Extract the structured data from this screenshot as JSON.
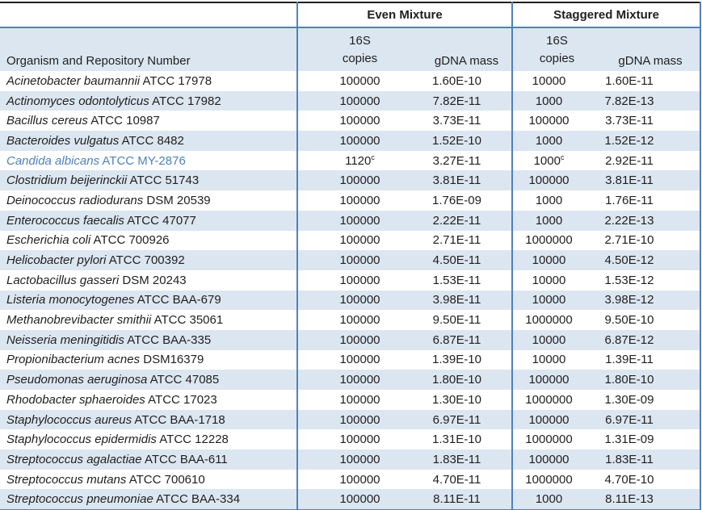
{
  "colors": {
    "stripe_blue": "#dce6f1",
    "line_blue": "#4f81bd",
    "top_border": "#1f1f1f",
    "text": "#1f1f1f",
    "highlight_text": "#4f81bd"
  },
  "table": {
    "group_headers": {
      "even": "Even Mixture",
      "staggered": "Staggered Mixture"
    },
    "subheaders": {
      "organism": "Organism and Repository Number",
      "copies_line1": "16S",
      "copies_line2": "copies",
      "gdna_mass": "gDNA mass"
    },
    "rows": [
      {
        "name": "Acinetobacter baumannii",
        "repo": "ATCC 17978",
        "even_copies": "100000",
        "even_copies_sup": "",
        "even_gdna": "1.60E-10",
        "stag_copies": "10000",
        "stag_copies_sup": "",
        "stag_gdna": "1.60E-11",
        "highlight": false
      },
      {
        "name": "Actinomyces odontolyticus",
        "repo": "ATCC 17982",
        "even_copies": "100000",
        "even_copies_sup": "",
        "even_gdna": "7.82E-11",
        "stag_copies": "1000",
        "stag_copies_sup": "",
        "stag_gdna": "7.82E-13",
        "highlight": false
      },
      {
        "name": "Bacillus cereus",
        "repo": "ATCC 10987",
        "even_copies": "100000",
        "even_copies_sup": "",
        "even_gdna": "3.73E-11",
        "stag_copies": "100000",
        "stag_copies_sup": "",
        "stag_gdna": "3.73E-11",
        "highlight": false
      },
      {
        "name": "Bacteroides vulgatus",
        "repo": "ATCC 8482",
        "even_copies": "100000",
        "even_copies_sup": "",
        "even_gdna": "1.52E-10",
        "stag_copies": "1000",
        "stag_copies_sup": "",
        "stag_gdna": "1.52E-12",
        "highlight": false
      },
      {
        "name": "Candida albicans",
        "repo": "ATCC MY-2876",
        "even_copies": "1120",
        "even_copies_sup": "c",
        "even_gdna": "3.27E-11",
        "stag_copies": "1000",
        "stag_copies_sup": "c",
        "stag_gdna": "2.92E-11",
        "highlight": true
      },
      {
        "name": "Clostridium beijerinckii",
        "repo": "ATCC 51743",
        "even_copies": "100000",
        "even_copies_sup": "",
        "even_gdna": "3.81E-11",
        "stag_copies": "100000",
        "stag_copies_sup": "",
        "stag_gdna": "3.81E-11",
        "highlight": false
      },
      {
        "name": "Deinococcus radiodurans",
        "repo": "DSM 20539",
        "even_copies": "100000",
        "even_copies_sup": "",
        "even_gdna": "1.76E-09",
        "stag_copies": "1000",
        "stag_copies_sup": "",
        "stag_gdna": "1.76E-11",
        "highlight": false
      },
      {
        "name": "Enterococcus faecalis",
        "repo": "ATCC 47077",
        "even_copies": "100000",
        "even_copies_sup": "",
        "even_gdna": "2.22E-11",
        "stag_copies": "1000",
        "stag_copies_sup": "",
        "stag_gdna": "2.22E-13",
        "highlight": false
      },
      {
        "name": "Escherichia coli",
        "repo": "ATCC 700926",
        "even_copies": "100000",
        "even_copies_sup": "",
        "even_gdna": "2.71E-11",
        "stag_copies": "1000000",
        "stag_copies_sup": "",
        "stag_gdna": "2.71E-10",
        "highlight": false
      },
      {
        "name": "Helicobacter pylori",
        "repo": "ATCC 700392",
        "even_copies": "100000",
        "even_copies_sup": "",
        "even_gdna": "4.50E-11",
        "stag_copies": "10000",
        "stag_copies_sup": "",
        "stag_gdna": "4.50E-12",
        "highlight": false
      },
      {
        "name": "Lactobacillus gasseri",
        "repo": "DSM 20243",
        "even_copies": "100000",
        "even_copies_sup": "",
        "even_gdna": "1.53E-11",
        "stag_copies": "10000",
        "stag_copies_sup": "",
        "stag_gdna": "1.53E-12",
        "highlight": false
      },
      {
        "name": "Listeria monocytogenes",
        "repo": "ATCC BAA-679",
        "even_copies": "100000",
        "even_copies_sup": "",
        "even_gdna": "3.98E-11",
        "stag_copies": "10000",
        "stag_copies_sup": "",
        "stag_gdna": "3.98E-12",
        "highlight": false
      },
      {
        "name": "Methanobrevibacter smithii",
        "repo": "ATCC 35061",
        "even_copies": "100000",
        "even_copies_sup": "",
        "even_gdna": "9.50E-11",
        "stag_copies": "1000000",
        "stag_copies_sup": "",
        "stag_gdna": "9.50E-10",
        "highlight": false
      },
      {
        "name": "Neisseria meningitidis",
        "repo": "ATCC BAA-335",
        "even_copies": "100000",
        "even_copies_sup": "",
        "even_gdna": "6.87E-11",
        "stag_copies": "10000",
        "stag_copies_sup": "",
        "stag_gdna": "6.87E-12",
        "highlight": false
      },
      {
        "name": "Propionibacterium acnes",
        "repo": "DSM16379",
        "even_copies": "100000",
        "even_copies_sup": "",
        "even_gdna": "1.39E-10",
        "stag_copies": "10000",
        "stag_copies_sup": "",
        "stag_gdna": "1.39E-11",
        "highlight": false
      },
      {
        "name": "Pseudomonas aeruginosa",
        "repo": "ATCC 47085",
        "even_copies": "100000",
        "even_copies_sup": "",
        "even_gdna": "1.80E-10",
        "stag_copies": "100000",
        "stag_copies_sup": "",
        "stag_gdna": "1.80E-10",
        "highlight": false
      },
      {
        "name": "Rhodobacter sphaeroides",
        "repo": "ATCC 17023",
        "even_copies": "100000",
        "even_copies_sup": "",
        "even_gdna": "1.30E-10",
        "stag_copies": "1000000",
        "stag_copies_sup": "",
        "stag_gdna": "1.30E-09",
        "highlight": false
      },
      {
        "name": "Staphylococcus aureus",
        "repo": "ATCC BAA-1718",
        "even_copies": "100000",
        "even_copies_sup": "",
        "even_gdna": "6.97E-11",
        "stag_copies": "100000",
        "stag_copies_sup": "",
        "stag_gdna": "6.97E-11",
        "highlight": false
      },
      {
        "name": "Staphylococcus epidermidis",
        "repo": "ATCC 12228",
        "even_copies": "100000",
        "even_copies_sup": "",
        "even_gdna": "1.31E-10",
        "stag_copies": "1000000",
        "stag_copies_sup": "",
        "stag_gdna": "1.31E-09",
        "highlight": false
      },
      {
        "name": "Streptococcus agalactiae",
        "repo": "ATCC BAA-611",
        "even_copies": "100000",
        "even_copies_sup": "",
        "even_gdna": "1.83E-11",
        "stag_copies": "100000",
        "stag_copies_sup": "",
        "stag_gdna": "1.83E-11",
        "highlight": false
      },
      {
        "name": "Streptococcus mutans",
        "repo": "ATCC 700610",
        "even_copies": "100000",
        "even_copies_sup": "",
        "even_gdna": "4.70E-11",
        "stag_copies": "1000000",
        "stag_copies_sup": "",
        "stag_gdna": "4.70E-10",
        "highlight": false
      },
      {
        "name": "Streptococcus pneumoniae",
        "repo": "ATCC BAA-334",
        "even_copies": "100000",
        "even_copies_sup": "",
        "even_gdna": "8.11E-11",
        "stag_copies": "1000",
        "stag_copies_sup": "",
        "stag_gdna": "8.11E-13",
        "highlight": false
      }
    ]
  }
}
